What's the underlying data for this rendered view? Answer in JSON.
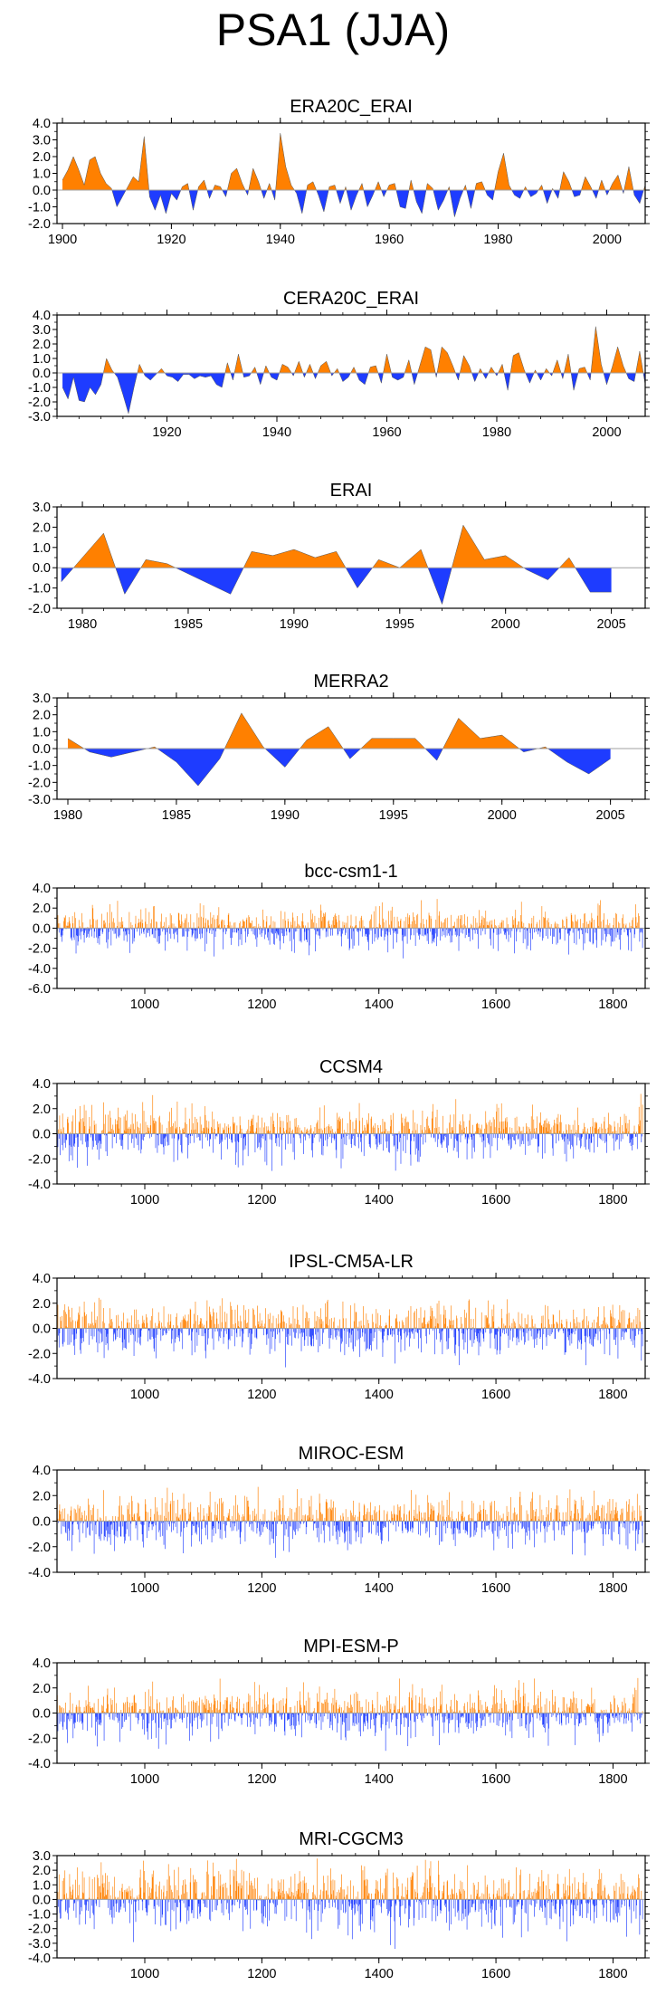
{
  "figure": {
    "title": "PSA1 (JJA)"
  },
  "colors": {
    "positive": "#ff8000",
    "negative": "#1e3cff",
    "baseline": "#a0a0a0",
    "axis": "#000000"
  },
  "chart_data": [
    {
      "type": "area",
      "title": "ERA20C_ERAI",
      "xlim": [
        1899,
        2007
      ],
      "ylim": [
        -2.0,
        4.0
      ],
      "yticks": [
        -2.0,
        -1.0,
        0.0,
        1.0,
        2.0,
        3.0,
        4.0
      ],
      "ytick_labels": [
        "-2.0",
        "-1.0",
        "0.0",
        "1.0",
        "2.0",
        "3.0",
        "4.0"
      ],
      "xticks": [
        1900,
        1920,
        1940,
        1960,
        1980,
        2000
      ],
      "xtick_labels": [
        "1900",
        "1920",
        "1940",
        "1960",
        "1980",
        "2000"
      ],
      "x_start": 1900,
      "values": [
        0.6,
        1.2,
        2.0,
        1.2,
        0.3,
        1.8,
        2.0,
        1.0,
        0.4,
        0.1,
        -1.0,
        -0.4,
        0.2,
        0.8,
        0.5,
        3.2,
        -0.4,
        -1.2,
        -0.3,
        -1.4,
        -0.2,
        -0.6,
        0.2,
        0.4,
        -1.2,
        0.2,
        0.6,
        -0.5,
        0.3,
        0.2,
        -0.4,
        1.0,
        1.3,
        0.4,
        -0.3,
        1.3,
        0.5,
        -0.5,
        0.4,
        -0.6,
        3.4,
        1.4,
        0.3,
        -0.2,
        -1.4,
        0.3,
        0.5,
        -0.3,
        -1.3,
        0.2,
        0.3,
        -0.8,
        0.2,
        -1.2,
        -0.3,
        0.4,
        -1.0,
        -0.3,
        0.5,
        -0.4,
        0.3,
        0.4,
        -1.0,
        -1.1,
        0.6,
        -0.7,
        -1.4,
        0.4,
        0.1,
        -1.2,
        -0.6,
        0.2,
        -1.6,
        -0.5,
        0.3,
        -1.1,
        0.4,
        0.5,
        -0.3,
        -0.6,
        1.1,
        2.2,
        0.3,
        -0.3,
        -0.5,
        0.2,
        -0.4,
        -0.2,
        0.3,
        -0.8,
        0.1,
        -0.5,
        1.1,
        0.5,
        -0.4,
        -0.3,
        0.8,
        0.2,
        -0.5,
        0.6,
        -0.3,
        0.4,
        0.9,
        -0.2,
        1.4,
        -0.3,
        -0.8,
        0.3
      ]
    },
    {
      "type": "area",
      "title": "CERA20C_ERAI",
      "xlim": [
        1900,
        2007
      ],
      "ylim": [
        -3.0,
        4.0
      ],
      "yticks": [
        -3.0,
        -2.0,
        -1.0,
        0.0,
        1.0,
        2.0,
        3.0,
        4.0
      ],
      "ytick_labels": [
        "-3.0",
        "-2.0",
        "-1.0",
        "0.0",
        "1.0",
        "2.0",
        "3.0",
        "4.0"
      ],
      "xticks": [
        1920,
        1940,
        1960,
        1980,
        2000
      ],
      "xtick_labels": [
        "1920",
        "1940",
        "1960",
        "1980",
        "2000"
      ],
      "x_start": 1901,
      "values": [
        -1.0,
        -1.8,
        -0.3,
        -1.9,
        -2.0,
        -1.0,
        -1.5,
        -0.8,
        1.0,
        0.2,
        -0.3,
        -1.5,
        -2.8,
        -1.0,
        0.6,
        -0.2,
        -0.5,
        -0.1,
        0.3,
        -0.2,
        -0.3,
        -0.6,
        -0.1,
        -0.1,
        -0.4,
        -0.2,
        -0.3,
        -0.2,
        -0.8,
        -1.0,
        0.7,
        -0.5,
        1.3,
        -0.3,
        -0.2,
        0.4,
        -0.8,
        0.5,
        -0.3,
        -0.5,
        0.6,
        0.4,
        -0.2,
        0.8,
        -0.3,
        0.6,
        -0.4,
        0.5,
        0.8,
        -0.2,
        0.3,
        -0.6,
        -0.3,
        0.4,
        -0.5,
        -0.8,
        0.4,
        0.5,
        -0.7,
        1.3,
        -0.3,
        -0.5,
        -0.3,
        0.9,
        -0.8,
        0.5,
        1.8,
        1.6,
        -0.3,
        1.8,
        1.4,
        0.5,
        -0.5,
        1.2,
        0.5,
        -0.6,
        0.3,
        -0.4,
        0.4,
        -0.2,
        0.6,
        -1.2,
        1.2,
        1.4,
        0.2,
        -0.7,
        0.2,
        -0.5,
        0.3,
        -0.2,
        0.9,
        -0.4,
        1.3,
        -1.2,
        0.3,
        0.4,
        -0.5,
        3.2,
        0.6,
        -0.8,
        0.4,
        1.8,
        0.5,
        -0.4,
        -0.6,
        1.5,
        -0.8
      ]
    },
    {
      "type": "area",
      "title": "ERAI",
      "xlim": [
        1978.8,
        2006.6
      ],
      "ylim": [
        -2.0,
        3.0
      ],
      "yticks": [
        -2.0,
        -1.0,
        0.0,
        1.0,
        2.0,
        3.0
      ],
      "ytick_labels": [
        "-2.0",
        "-1.0",
        "0.0",
        "1.0",
        "2.0",
        "3.0"
      ],
      "xticks": [
        1980,
        1985,
        1990,
        1995,
        2000,
        2005
      ],
      "xtick_labels": [
        "1980",
        "1985",
        "1990",
        "1995",
        "2000",
        "2005"
      ],
      "x_start": 1979,
      "values": [
        -0.7,
        0.5,
        1.7,
        -1.3,
        0.4,
        0.2,
        -0.3,
        -0.8,
        -1.3,
        0.8,
        0.6,
        0.9,
        0.5,
        0.8,
        -1.0,
        0.4,
        0.0,
        0.9,
        -1.8,
        2.1,
        0.4,
        0.6,
        -0.1,
        -0.6,
        0.5,
        -1.2,
        -1.2
      ]
    },
    {
      "type": "area",
      "title": "MERRA2",
      "xlim": [
        1979.5,
        2006.6
      ],
      "ylim": [
        -3.0,
        3.0
      ],
      "yticks": [
        -3.0,
        -2.0,
        -1.0,
        0.0,
        1.0,
        2.0,
        3.0
      ],
      "ytick_labels": [
        "-3.0",
        "-2.0",
        "-1.0",
        "0.0",
        "1.0",
        "2.0",
        "3.0"
      ],
      "xticks": [
        1980,
        1985,
        1990,
        1995,
        2000,
        2005
      ],
      "xtick_labels": [
        "1980",
        "1985",
        "1990",
        "1995",
        "2000",
        "2005"
      ],
      "x_start": 1980,
      "values": [
        0.6,
        -0.2,
        -0.5,
        -0.2,
        0.1,
        -0.8,
        -2.2,
        -0.6,
        2.1,
        0.1,
        -1.1,
        0.5,
        1.3,
        -0.6,
        0.6,
        0.6,
        0.6,
        -0.7,
        1.8,
        0.6,
        0.8,
        -0.2,
        0.1,
        -0.8,
        -1.5,
        -0.6
      ]
    },
    {
      "type": "bar",
      "title": "bcc-csm1-1",
      "xlim": [
        850,
        1855
      ],
      "ylim": [
        -6.0,
        4.0
      ],
      "yticks": [
        -6.0,
        -4.0,
        -2.0,
        0.0,
        2.0,
        4.0
      ],
      "ytick_labels": [
        "-6.0",
        "-4.0",
        "-2.0",
        "0.0",
        "2.0",
        "4.0"
      ],
      "xticks": [
        1000,
        1200,
        1400,
        1600,
        1800
      ],
      "xtick_labels": [
        "1000",
        "1200",
        "1400",
        "1600",
        "1800"
      ],
      "x_start": 850,
      "count": 1001,
      "amplitude": 1.0,
      "seed": 11
    },
    {
      "type": "bar",
      "title": "CCSM4",
      "xlim": [
        850,
        1855
      ],
      "ylim": [
        -4.0,
        4.0
      ],
      "yticks": [
        -4.0,
        -2.0,
        0.0,
        2.0,
        4.0
      ],
      "ytick_labels": [
        "-4.0",
        "-2.0",
        "0.0",
        "2.0",
        "4.0"
      ],
      "xticks": [
        1000,
        1200,
        1400,
        1600,
        1800
      ],
      "xtick_labels": [
        "1000",
        "1200",
        "1400",
        "1600",
        "1800"
      ],
      "x_start": 850,
      "count": 1001,
      "amplitude": 1.0,
      "seed": 23
    },
    {
      "type": "bar",
      "title": "IPSL-CM5A-LR",
      "xlim": [
        850,
        1855
      ],
      "ylim": [
        -4.0,
        4.0
      ],
      "yticks": [
        -4.0,
        -2.0,
        0.0,
        2.0,
        4.0
      ],
      "ytick_labels": [
        "-4.0",
        "-2.0",
        "0.0",
        "2.0",
        "4.0"
      ],
      "xticks": [
        1000,
        1200,
        1400,
        1600,
        1800
      ],
      "xtick_labels": [
        "1000",
        "1200",
        "1400",
        "1600",
        "1800"
      ],
      "x_start": 850,
      "count": 1001,
      "amplitude": 1.0,
      "seed": 37
    },
    {
      "type": "bar",
      "title": "MIROC-ESM",
      "xlim": [
        850,
        1855
      ],
      "ylim": [
        -4.0,
        4.0
      ],
      "yticks": [
        -4.0,
        -2.0,
        0.0,
        2.0,
        4.0
      ],
      "ytick_labels": [
        "-4.0",
        "-2.0",
        "0.0",
        "2.0",
        "4.0"
      ],
      "xticks": [
        1000,
        1200,
        1400,
        1600,
        1800
      ],
      "xtick_labels": [
        "1000",
        "1200",
        "1400",
        "1600",
        "1800"
      ],
      "x_start": 850,
      "count": 1001,
      "amplitude": 1.0,
      "seed": 41
    },
    {
      "type": "bar",
      "title": "MPI-ESM-P",
      "xlim": [
        850,
        1855
      ],
      "ylim": [
        -4.0,
        4.0
      ],
      "yticks": [
        -4.0,
        -2.0,
        0.0,
        2.0,
        4.0
      ],
      "ytick_labels": [
        "-4.0",
        "-2.0",
        "0.0",
        "2.0",
        "4.0"
      ],
      "xticks": [
        1000,
        1200,
        1400,
        1600,
        1800
      ],
      "xtick_labels": [
        "1000",
        "1200",
        "1400",
        "1600",
        "1800"
      ],
      "x_start": 850,
      "count": 1001,
      "amplitude": 1.0,
      "seed": 53
    },
    {
      "type": "bar",
      "title": "MRI-CGCM3",
      "xlim": [
        850,
        1855
      ],
      "ylim": [
        -4.0,
        3.0
      ],
      "yticks": [
        -4.0,
        -3.0,
        -2.0,
        -1.0,
        0.0,
        1.0,
        2.0,
        3.0
      ],
      "ytick_labels": [
        "-4.0",
        "-3.0",
        "-2.0",
        "-1.0",
        "0.0",
        "1.0",
        "2.0",
        "3.0"
      ],
      "xticks": [
        1000,
        1200,
        1400,
        1600,
        1800
      ],
      "xtick_labels": [
        "1000",
        "1200",
        "1400",
        "1600",
        "1800"
      ],
      "x_start": 850,
      "count": 1001,
      "amplitude": 1.0,
      "seed": 67
    }
  ]
}
